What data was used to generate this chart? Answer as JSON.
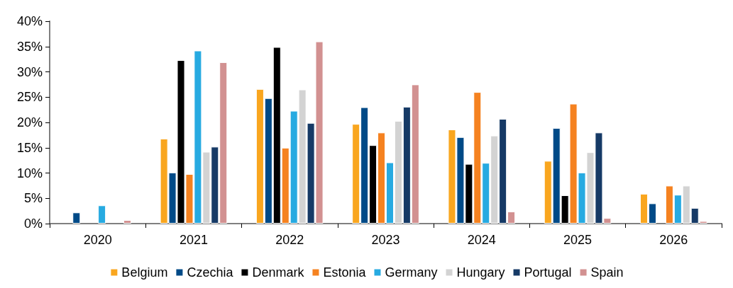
{
  "chart_data": {
    "type": "bar",
    "categories": [
      "2020",
      "2021",
      "2022",
      "2023",
      "2024",
      "2025",
      "2026"
    ],
    "series": [
      {
        "name": "Belgium",
        "color": "#f9a61f",
        "values": [
          null,
          16.8,
          26.6,
          19.7,
          18.6,
          12.4,
          5.9
        ]
      },
      {
        "name": "Czechia",
        "color": "#004a87",
        "values": [
          2.2,
          10.1,
          24.8,
          23.0,
          17.1,
          18.9,
          4.0
        ]
      },
      {
        "name": "Denmark",
        "color": "#000000",
        "values": [
          null,
          32.3,
          34.9,
          15.5,
          11.8,
          5.6,
          null
        ]
      },
      {
        "name": "Estonia",
        "color": "#f58220",
        "values": [
          null,
          9.8,
          15.0,
          18.0,
          26.0,
          23.7,
          7.5
        ]
      },
      {
        "name": "Germany",
        "color": "#27aae1",
        "values": [
          3.6,
          34.2,
          22.3,
          12.1,
          12.0,
          10.1,
          5.7
        ]
      },
      {
        "name": "Hungary",
        "color": "#d3d3d3",
        "values": [
          null,
          14.2,
          26.5,
          20.3,
          17.4,
          14.1,
          7.5
        ]
      },
      {
        "name": "Portugal",
        "color": "#163a66",
        "values": [
          null,
          15.2,
          19.9,
          23.1,
          20.7,
          18.0,
          3.1
        ]
      },
      {
        "name": "Spain",
        "color": "#d29191",
        "values": [
          0.7,
          31.9,
          36.0,
          27.5,
          2.4,
          1.1,
          0.5
        ]
      }
    ],
    "ylim": [
      0,
      40
    ],
    "yticks": [
      {
        "value": 0,
        "label": "0%"
      },
      {
        "value": 5,
        "label": "5%"
      },
      {
        "value": 10,
        "label": "10%"
      },
      {
        "value": 15,
        "label": "15%"
      },
      {
        "value": 20,
        "label": "20%"
      },
      {
        "value": 25,
        "label": "25%"
      },
      {
        "value": 30,
        "label": "30%"
      },
      {
        "value": 35,
        "label": "35%"
      },
      {
        "value": 40,
        "label": "40%"
      }
    ],
    "grid": false,
    "legend": "bottom"
  }
}
